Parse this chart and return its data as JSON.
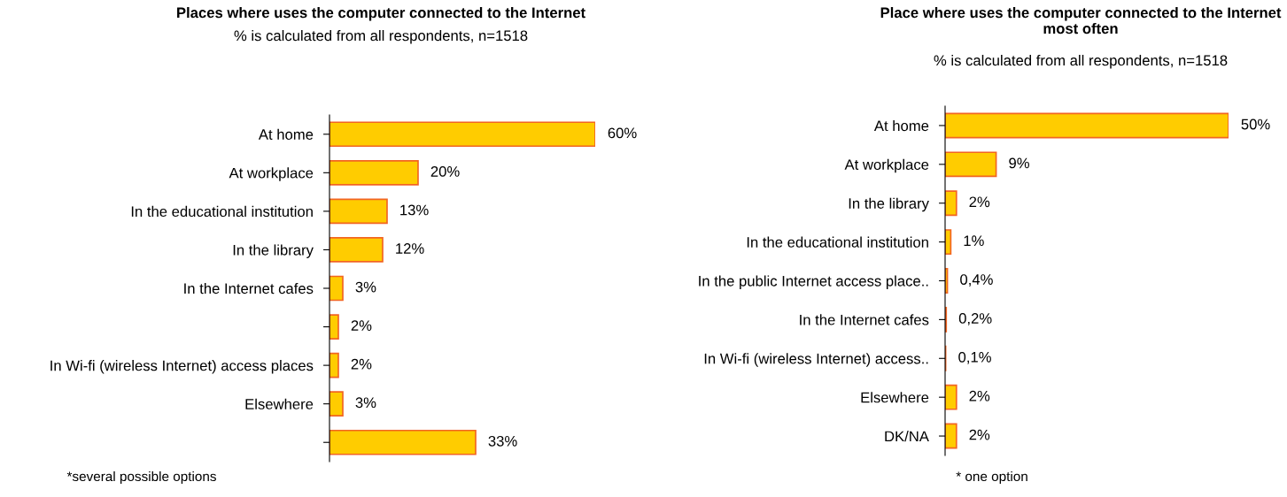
{
  "chart_data": [
    {
      "type": "bar",
      "orientation": "horizontal",
      "title": "Places where uses the computer connected to the Internet",
      "subtitle": "% is calculated from all respondents, n=1518",
      "categories": [
        "At home",
        "At workplace",
        "In the educational institution",
        "In the library",
        "In the Internet cafes",
        null,
        "In Wi-fi (wireless Internet) access places",
        "Elsewhere",
        null
      ],
      "values": [
        60,
        20,
        13,
        12,
        3,
        2,
        2,
        3,
        33
      ],
      "value_labels": [
        "60%",
        "20%",
        "13%",
        "12%",
        "3%",
        "2%",
        "2%",
        "3%",
        "33%"
      ],
      "color": "#ffcc00",
      "grid": false,
      "legend": false,
      "tick_labels": "y",
      "annotations": [
        "*several possible options"
      ]
    },
    {
      "type": "bar",
      "orientation": "horizontal",
      "title": "Place where uses the computer connected to the Internet most often",
      "subtitle": "% is calculated from all respondents, n=1518",
      "categories": [
        "At home",
        "At workplace",
        "In the library",
        "In the educational institution",
        "In the public Internet access place..",
        "In the Internet cafes",
        "In Wi-fi (wireless Internet) access..",
        "Elsewhere",
        "DK/NA"
      ],
      "values": [
        50,
        9,
        2,
        1,
        0.4,
        0.2,
        0.1,
        2,
        2
      ],
      "value_labels": [
        "50%",
        "9%",
        "2%",
        "1%",
        "0,4%",
        "0,2%",
        "0,1%",
        "2%",
        "2%"
      ],
      "color": "#ffcc00",
      "grid": false,
      "legend": false,
      "tick_labels": "y",
      "annotations": [
        "* one option"
      ]
    }
  ]
}
